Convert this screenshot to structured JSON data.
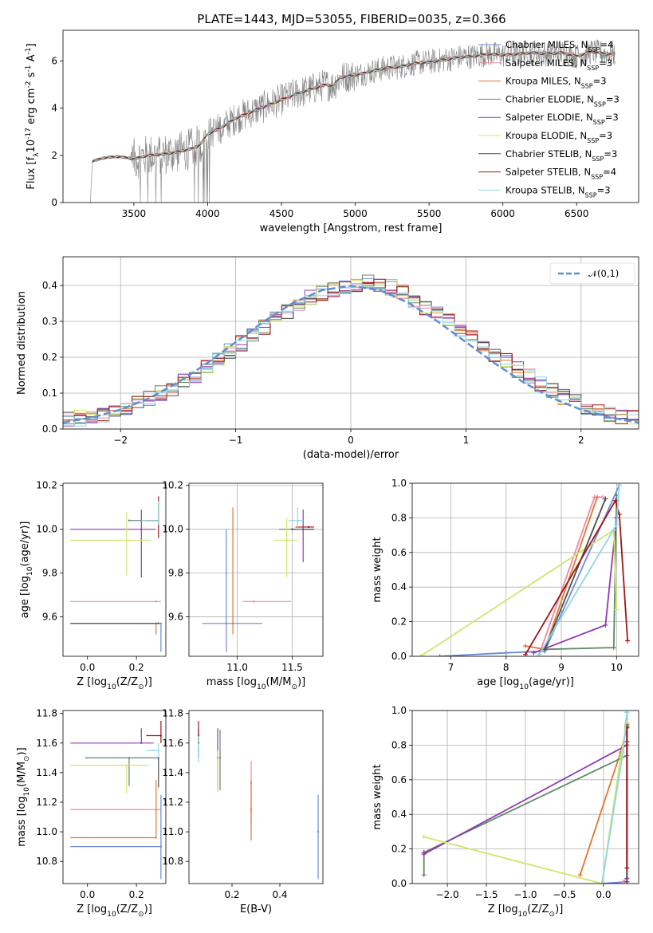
{
  "title": "PLATE=1443, MJD=53055, FIBERID=0035, z=0.366",
  "colors": {
    "Chabrier MILES": "#6a8bd9",
    "Salpeter MILES": "#ec8aa8",
    "Kroupa MILES": "#e0772f",
    "Chabrier ELODIE": "#5f8a68",
    "Salpeter ELODIE": "#8f3aaf",
    "Kroupa ELODIE": "#cfe66b",
    "Chabrier STELIB": "#4d4d4d",
    "Salpeter STELIB": "#a01515",
    "Kroupa STELIB": "#8fd6e0",
    "data": "#808080",
    "gaussian": "#5b8fd6"
  },
  "chart_data": [
    {
      "type": "line",
      "panel": "spectrum",
      "title": "PLATE=1443, MJD=53055, FIBERID=0035, z=0.366",
      "xlabel": "wavelength [Angstrom, rest frame]",
      "ylabel": "Flux [f$_\\lambda$10$^{-17}$ erg cm$^{-2}$ s$^{-1}$ A$^{-1}$]",
      "xlim": [
        3020,
        6920
      ],
      "ylim": [
        0,
        7.3
      ],
      "xticks": [
        3500,
        4000,
        4500,
        5000,
        5500,
        6000,
        6500
      ],
      "yticks": [
        0,
        2,
        4,
        6
      ],
      "grid": false,
      "legend_position": "top-right",
      "legend": [
        "Chabrier MILES, N$_{SSP}$=4",
        "Salpeter MILES, N$_{SSP}$=3",
        "Kroupa MILES, N$_{SSP}$=3",
        "Chabrier ELODIE, N$_{SSP}$=3",
        "Salpeter ELODIE, N$_{SSP}$=3",
        "Kroupa ELODIE, N$_{SSP}$=3",
        "Chabrier STELIB, N$_{SSP}$=3",
        "Salpeter STELIB, N$_{SSP}$=4",
        "Kroupa STELIB, N$_{SSP}$=3"
      ],
      "continuum_x": [
        3220,
        3300,
        3400,
        3500,
        3600,
        3700,
        3800,
        3900,
        3950,
        4000,
        4100,
        4200,
        4300,
        4400,
        4500,
        4600,
        4700,
        4800,
        4850,
        4900,
        5000,
        5100,
        5200,
        5300,
        5400,
        5500,
        5600,
        5700,
        5800,
        5900,
        6000,
        6100,
        6200,
        6300,
        6400,
        6500,
        6600,
        6700
      ],
      "continuum_y": [
        1.75,
        1.9,
        1.95,
        1.85,
        2.0,
        2.05,
        2.15,
        2.3,
        2.45,
        2.9,
        3.2,
        3.6,
        3.85,
        4.1,
        4.35,
        4.6,
        4.8,
        5.0,
        4.95,
        5.3,
        5.4,
        5.55,
        5.7,
        5.75,
        5.9,
        5.95,
        6.05,
        6.15,
        6.2,
        6.3,
        6.25,
        6.3,
        6.35,
        6.3,
        6.35,
        6.2,
        6.4,
        6.3
      ]
    },
    {
      "type": "line",
      "panel": "residuals",
      "xlabel": "(data-model)/error",
      "ylabel": "Normed distribution",
      "xlim": [
        -2.5,
        2.5
      ],
      "ylim": [
        0,
        0.48
      ],
      "xticks": [
        -2,
        -1,
        0,
        1,
        2
      ],
      "yticks": [
        0.0,
        0.1,
        0.2,
        0.3,
        0.4
      ],
      "grid": true,
      "legend_position": "top-right",
      "legend": [
        "$\\mathcal{N}(0,1)$"
      ],
      "gaussian_x": [
        -2.5,
        -2.25,
        -2.0,
        -1.75,
        -1.5,
        -1.25,
        -1.0,
        -0.75,
        -0.5,
        -0.25,
        0.0,
        0.25,
        0.5,
        0.75,
        1.0,
        1.25,
        1.5,
        1.75,
        2.0,
        2.25,
        2.5
      ],
      "gaussian_y": [
        0.018,
        0.032,
        0.054,
        0.086,
        0.13,
        0.183,
        0.242,
        0.301,
        0.352,
        0.387,
        0.399,
        0.387,
        0.352,
        0.301,
        0.242,
        0.183,
        0.13,
        0.086,
        0.054,
        0.032,
        0.018
      ],
      "hist_x": [
        -2.5,
        -2.4,
        -2.3,
        -2.2,
        -2.1,
        -2.0,
        -1.9,
        -1.8,
        -1.7,
        -1.6,
        -1.5,
        -1.4,
        -1.3,
        -1.2,
        -1.1,
        -1.0,
        -0.9,
        -0.8,
        -0.7,
        -0.6,
        -0.5,
        -0.4,
        -0.3,
        -0.2,
        -0.1,
        0.0,
        0.1,
        0.2,
        0.3,
        0.4,
        0.5,
        0.6,
        0.7,
        0.8,
        0.9,
        1.0,
        1.1,
        1.2,
        1.3,
        1.4,
        1.5,
        1.6,
        1.7,
        1.8,
        1.9,
        2.0,
        2.1,
        2.2,
        2.3,
        2.4
      ],
      "hist_y": [
        0.025,
        0.03,
        0.035,
        0.04,
        0.05,
        0.06,
        0.07,
        0.085,
        0.1,
        0.115,
        0.135,
        0.15,
        0.17,
        0.195,
        0.215,
        0.24,
        0.26,
        0.285,
        0.31,
        0.33,
        0.35,
        0.37,
        0.38,
        0.39,
        0.4,
        0.405,
        0.41,
        0.4,
        0.395,
        0.38,
        0.36,
        0.34,
        0.325,
        0.3,
        0.28,
        0.255,
        0.23,
        0.21,
        0.19,
        0.165,
        0.145,
        0.125,
        0.105,
        0.09,
        0.075,
        0.06,
        0.05,
        0.04,
        0.035,
        0.03
      ]
    },
    {
      "type": "scatter",
      "panel": "age-vs-Z",
      "xlabel": "Z [log$_{10}$(Z/Z$_\\odot$)]",
      "ylabel": "age  [log$_{10}$(age/yr)]",
      "xlim": [
        -0.1,
        0.32
      ],
      "ylim": [
        9.42,
        10.21
      ],
      "xticks": [
        0.0,
        0.2
      ],
      "yticks": [
        9.6,
        9.8,
        10.0,
        10.2
      ],
      "grid": false,
      "points": [
        {
          "name": "Chabrier MILES",
          "x": 0.3,
          "y": 9.57,
          "xerr": [
            0.37,
            0.0
          ],
          "yerr": [
            0.13,
            0.0
          ]
        },
        {
          "name": "Salpeter MILES",
          "x": 0.28,
          "y": 9.67,
          "xerr": [
            0.35,
            0.02
          ],
          "yerr": [
            0.0,
            0.0
          ]
        },
        {
          "name": "Kroupa MILES",
          "x": 0.28,
          "y": 9.57,
          "xerr": [
            0.35,
            0.0
          ],
          "yerr": [
            0.05,
            0.0
          ]
        },
        {
          "name": "Chabrier ELODIE",
          "x": 0.17,
          "y": 10.04,
          "xerr": [
            0.0,
            0.12
          ],
          "yerr": [
            0.0,
            0.0
          ]
        },
        {
          "name": "Salpeter ELODIE",
          "x": 0.22,
          "y": 10.0,
          "xerr": [
            0.29,
            0.06
          ],
          "yerr": [
            0.22,
            0.09
          ]
        },
        {
          "name": "Kroupa ELODIE",
          "x": 0.16,
          "y": 9.95,
          "xerr": [
            0.23,
            0.1
          ],
          "yerr": [
            0.16,
            0.13
          ]
        },
        {
          "name": "Chabrier STELIB",
          "x": 0.29,
          "y": 9.57,
          "xerr": [
            0.36,
            0.0
          ],
          "yerr": [
            0.0,
            0.0
          ]
        },
        {
          "name": "Salpeter STELIB",
          "x": 0.29,
          "y": 10.04,
          "xerr": [
            0.05,
            0.0
          ],
          "yerr": [
            0.08,
            0.11
          ]
        },
        {
          "name": "Kroupa STELIB",
          "x": 0.29,
          "y": 10.04,
          "xerr": [
            0.07,
            0.0
          ],
          "yerr": [
            0.02,
            0.09
          ]
        }
      ]
    },
    {
      "type": "scatter",
      "panel": "age-vs-mass",
      "xlabel": "mass [log$_{10}$(M/M$_\\odot$)]",
      "ylabel": "",
      "xlim": [
        10.56,
        11.78
      ],
      "ylim": [
        9.42,
        10.21
      ],
      "xticks": [
        11.0,
        11.5
      ],
      "yticks": [
        9.6,
        9.8,
        10.0,
        10.2
      ],
      "grid": true,
      "points": [
        {
          "name": "Chabrier MILES",
          "x": 10.9,
          "y": 9.57,
          "xerr": [
            0.22,
            0.33
          ],
          "yerr": [
            0.13,
            0.43
          ]
        },
        {
          "name": "Salpeter MILES",
          "x": 11.15,
          "y": 9.67,
          "xerr": [
            0.1,
            0.34
          ],
          "yerr": [
            0.0,
            0.0
          ]
        },
        {
          "name": "Kroupa MILES",
          "x": 10.96,
          "y": 9.57,
          "xerr": [
            0.0,
            0.0
          ],
          "yerr": [
            0.05,
            0.53
          ]
        },
        {
          "name": "Chabrier ELODIE",
          "x": 11.5,
          "y": 10.0,
          "xerr": [
            0.12,
            0.05
          ],
          "yerr": [
            0.0,
            0.0
          ]
        },
        {
          "name": "Salpeter ELODIE",
          "x": 11.6,
          "y": 10.0,
          "xerr": [
            0.0,
            0.1
          ],
          "yerr": [
            0.15,
            0.09
          ]
        },
        {
          "name": "Kroupa ELODIE",
          "x": 11.45,
          "y": 9.95,
          "xerr": [
            0.12,
            0.1
          ],
          "yerr": [
            0.17,
            0.1
          ]
        },
        {
          "name": "Chabrier STELIB",
          "x": 11.5,
          "y": 10.0,
          "xerr": [
            0.0,
            0.2
          ],
          "yerr": [
            0.0,
            0.0
          ]
        },
        {
          "name": "Salpeter STELIB",
          "x": 11.65,
          "y": 10.01,
          "xerr": [
            0.12,
            0.05
          ],
          "yerr": [
            0.0,
            0.0
          ]
        },
        {
          "name": "Kroupa STELIB",
          "x": 11.55,
          "y": 10.04,
          "xerr": [
            0.08,
            0.05
          ],
          "yerr": [
            0.04,
            0.06
          ]
        }
      ]
    },
    {
      "type": "line",
      "panel": "weight-vs-age",
      "xlabel": "age  [log$_{10}$(age/yr)]",
      "ylabel": "mass weight",
      "xlim": [
        6.3,
        10.4
      ],
      "ylim": [
        0,
        1.0
      ],
      "xticks": [
        7,
        8,
        9,
        10
      ],
      "yticks": [
        0.0,
        0.2,
        0.4,
        0.6,
        0.8,
        1.0
      ],
      "grid": true,
      "series": [
        {
          "name": "Chabrier MILES",
          "x": [
            6.8,
            8.0,
            8.7,
            10.05
          ],
          "y": [
            0.0,
            0.02,
            0.03,
            0.99
          ]
        },
        {
          "name": "Salpeter MILES",
          "x": [
            8.6,
            9.6,
            9.75
          ],
          "y": [
            0.01,
            0.92,
            0.92
          ]
        },
        {
          "name": "Kroupa MILES",
          "x": [
            8.35,
            8.7,
            9.65
          ],
          "y": [
            0.06,
            0.04,
            0.92
          ]
        },
        {
          "name": "Chabrier ELODIE",
          "x": [
            8.7,
            9.95,
            10.0
          ],
          "y": [
            0.04,
            0.05,
            0.93
          ]
        },
        {
          "name": "Salpeter ELODIE",
          "x": [
            8.5,
            9.8,
            10.0
          ],
          "y": [
            0.02,
            0.18,
            0.8
          ]
        },
        {
          "name": "Kroupa ELODIE",
          "x": [
            6.45,
            9.95,
            10.0
          ],
          "y": [
            0.0,
            0.73,
            0.27
          ]
        },
        {
          "name": "Chabrier STELIB",
          "x": [
            8.7,
            9.8
          ],
          "y": [
            0.04,
            0.91
          ]
        },
        {
          "name": "Salpeter STELIB",
          "x": [
            8.35,
            9.98,
            10.05,
            10.2
          ],
          "y": [
            0.01,
            0.9,
            0.82,
            0.09
          ]
        },
        {
          "name": "Kroupa STELIB",
          "x": [
            8.6,
            10.0,
            10.05
          ],
          "y": [
            0.01,
            0.76,
            0.99
          ]
        }
      ]
    },
    {
      "type": "scatter",
      "panel": "mass-vs-Z",
      "xlabel": "Z [log$_{10}$(Z/Z$_\\odot$)]",
      "ylabel": "mass [log$_{10}$(M/M$_\\odot$)]",
      "xlim": [
        -0.1,
        0.32
      ],
      "ylim": [
        10.65,
        11.82
      ],
      "xticks": [
        0.0,
        0.2
      ],
      "yticks": [
        10.8,
        11.0,
        11.2,
        11.4,
        11.6,
        11.8
      ],
      "grid": false,
      "points": [
        {
          "name": "Chabrier MILES",
          "x": 0.3,
          "y": 10.9,
          "xerr": [
            0.37,
            0.0
          ],
          "yerr": [
            0.22,
            0.35
          ]
        },
        {
          "name": "Salpeter MILES",
          "x": 0.28,
          "y": 11.15,
          "xerr": [
            0.35,
            0.02
          ],
          "yerr": [
            0.0,
            0.0
          ]
        },
        {
          "name": "Kroupa MILES",
          "x": 0.28,
          "y": 10.96,
          "xerr": [
            0.35,
            0.0
          ],
          "yerr": [
            0.0,
            0.39
          ]
        },
        {
          "name": "Chabrier ELODIE",
          "x": 0.17,
          "y": 11.5,
          "xerr": [
            0.18,
            0.12
          ],
          "yerr": [
            0.19,
            0.0
          ]
        },
        {
          "name": "Salpeter ELODIE",
          "x": 0.22,
          "y": 11.6,
          "xerr": [
            0.29,
            0.05
          ],
          "yerr": [
            0.0,
            0.1
          ]
        },
        {
          "name": "Kroupa ELODIE",
          "x": 0.16,
          "y": 11.45,
          "xerr": [
            0.23,
            0.09
          ],
          "yerr": [
            0.19,
            0.0
          ]
        },
        {
          "name": "Chabrier STELIB",
          "x": 0.29,
          "y": 11.5,
          "xerr": [
            0.0,
            0.0
          ],
          "yerr": [
            0.2,
            0.0
          ]
        },
        {
          "name": "Salpeter STELIB",
          "x": 0.3,
          "y": 11.65,
          "xerr": [
            0.06,
            0.0
          ],
          "yerr": [
            0.05,
            0.1
          ]
        },
        {
          "name": "Kroupa STELIB",
          "x": 0.29,
          "y": 11.55,
          "xerr": [
            0.05,
            0.0
          ],
          "yerr": [
            0.05,
            0.05
          ]
        }
      ]
    },
    {
      "type": "scatter",
      "panel": "mass-vs-EBV",
      "xlabel": "E(B-V)",
      "ylabel": "",
      "xlim": [
        0.02,
        0.58
      ],
      "ylim": [
        10.65,
        11.82
      ],
      "xticks": [
        0.2,
        0.4
      ],
      "yticks": [
        10.8,
        11.0,
        11.2,
        11.4,
        11.6,
        11.8
      ],
      "grid": false,
      "points": [
        {
          "name": "Chabrier MILES",
          "x": 0.56,
          "y": 11.0,
          "yerr": [
            0.32,
            0.25
          ]
        },
        {
          "name": "Salpeter MILES",
          "x": 0.28,
          "y": 11.33,
          "yerr": [
            0.27,
            0.15
          ]
        },
        {
          "name": "Kroupa MILES",
          "x": 0.28,
          "y": 11.15,
          "yerr": [
            0.21,
            0.2
          ]
        },
        {
          "name": "Chabrier ELODIE",
          "x": 0.15,
          "y": 11.5,
          "yerr": [
            0.22,
            0.19
          ]
        },
        {
          "name": "Salpeter ELODIE",
          "x": 0.14,
          "y": 11.5,
          "yerr": [
            0.22,
            0.2
          ]
        },
        {
          "name": "Kroupa ELODIE",
          "x": 0.14,
          "y": 11.45,
          "yerr": [
            0.18,
            0.1
          ]
        },
        {
          "name": "Chabrier STELIB",
          "x": 0.06,
          "y": 11.6,
          "yerr": [
            0.1,
            0.1
          ]
        },
        {
          "name": "Salpeter STELIB",
          "x": 0.06,
          "y": 11.65,
          "yerr": [
            0.05,
            0.1
          ]
        },
        {
          "name": "Kroupa STELIB",
          "x": 0.06,
          "y": 11.55,
          "yerr": [
            0.08,
            0.1
          ]
        }
      ]
    },
    {
      "type": "line",
      "panel": "weight-vs-Z",
      "xlabel": "Z [log$_{10}$(Z/Z$_\\odot$)]",
      "ylabel": "mass weight",
      "xlim": [
        -2.45,
        0.45
      ],
      "ylim": [
        0,
        1.0
      ],
      "xticks": [
        -2.0,
        -1.5,
        -1.0,
        -0.5,
        0.0
      ],
      "yticks": [
        0.0,
        0.2,
        0.4,
        0.6,
        0.8,
        1.0
      ],
      "grid": true,
      "series": [
        {
          "name": "Chabrier MILES",
          "x": [
            -0.02,
            0.3,
            0.3
          ],
          "y": [
            0.0,
            0.01,
            0.99
          ]
        },
        {
          "name": "Salpeter MILES",
          "x": [
            0.25,
            0.3,
            0.3
          ],
          "y": [
            0.01,
            0.03,
            0.92
          ]
        },
        {
          "name": "Kroupa MILES",
          "x": [
            -0.3,
            0.22,
            0.3,
            0.3
          ],
          "y": [
            0.05,
            0.76,
            0.9,
            0.92
          ]
        },
        {
          "name": "Chabrier ELODIE",
          "x": [
            -2.3,
            -2.3,
            0.3,
            0.3
          ],
          "y": [
            0.05,
            0.18,
            0.74,
            0.91
          ]
        },
        {
          "name": "Salpeter ELODIE",
          "x": [
            -2.3,
            -2.3,
            0.3,
            0.3
          ],
          "y": [
            0.18,
            0.17,
            0.8,
            0.03
          ]
        },
        {
          "name": "Kroupa ELODIE",
          "x": [
            -2.3,
            -0.02,
            0.22,
            0.3
          ],
          "y": [
            0.27,
            0.0,
            0.73,
            0.93
          ]
        },
        {
          "name": "Chabrier STELIB",
          "x": [
            0.3,
            0.3
          ],
          "y": [
            0.01,
            0.91
          ]
        },
        {
          "name": "Salpeter STELIB",
          "x": [
            0.3,
            0.3,
            0.3
          ],
          "y": [
            0.09,
            0.9,
            0.82
          ]
        },
        {
          "name": "Kroupa STELIB",
          "x": [
            -0.02,
            0.25,
            0.3
          ],
          "y": [
            0.0,
            0.76,
            0.99
          ]
        }
      ]
    }
  ]
}
